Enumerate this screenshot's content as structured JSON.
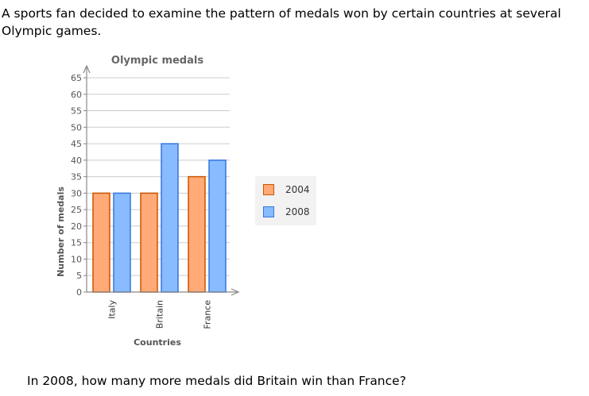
{
  "question": {
    "intro": "A sports fan decided to examine the pattern of medals won by certain countries at several Olympic games.",
    "prompt": "In 2008, how many more medals did Britain win than France?"
  },
  "chart_data": {
    "type": "bar",
    "title": "Olympic medals",
    "xlabel": "Countries",
    "ylabel": "Number of medals",
    "categories": [
      "Italy",
      "Britain",
      "France"
    ],
    "series": [
      {
        "name": "2004",
        "values": [
          30,
          30,
          35
        ],
        "fill": "#ffaa77",
        "stroke": "#cc5500"
      },
      {
        "name": "2008",
        "values": [
          30,
          45,
          40
        ],
        "fill": "#88bbff",
        "stroke": "#3377dd"
      }
    ],
    "ylim": [
      0,
      65
    ],
    "yticks": [
      0,
      5,
      10,
      15,
      20,
      25,
      30,
      35,
      40,
      45,
      50,
      55,
      60,
      65
    ],
    "grid": true,
    "legend_position": "right"
  }
}
